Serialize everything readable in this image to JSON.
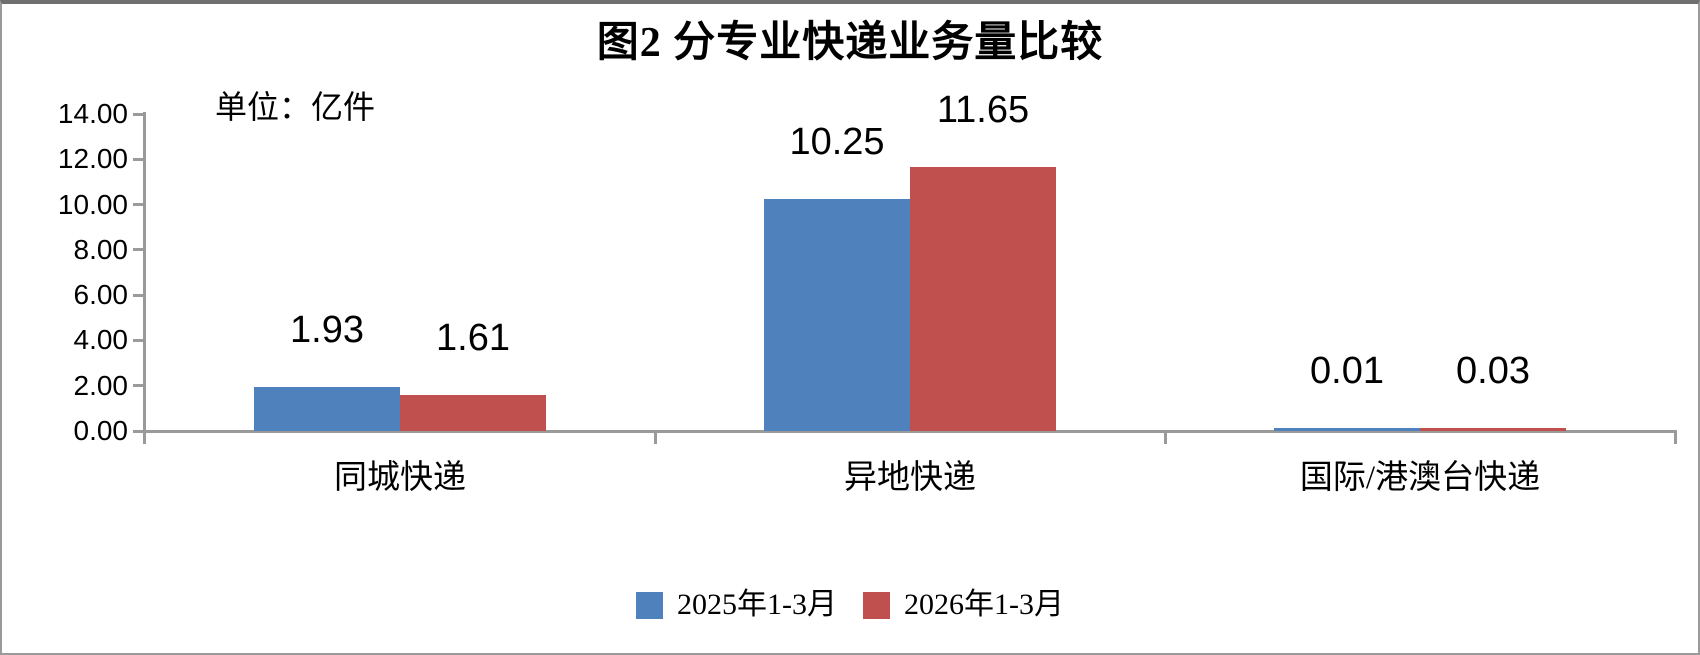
{
  "chart": {
    "title": "图2 分专业快递业务量比较",
    "unit_label": "单位：亿件"
  },
  "chart_data": {
    "type": "bar",
    "title": "图2 分专业快递业务量比较",
    "unit_label": "单位：亿件",
    "categories": [
      "同城快递",
      "异地快递",
      "国际/港澳台快递"
    ],
    "series": [
      {
        "name": "2025年1-3月",
        "color": "#4F81BD",
        "values": [
          1.93,
          10.25,
          0.01
        ],
        "value_labels": [
          "1.93",
          "10.25",
          "0.01"
        ]
      },
      {
        "name": "2026年1-3月",
        "color": "#C0504D",
        "values": [
          1.61,
          11.65,
          0.03
        ],
        "value_labels": [
          "1.61",
          "11.65",
          "0.03"
        ]
      }
    ],
    "ylabel": "",
    "xlabel": "",
    "ylim": [
      0,
      14
    ],
    "y_tick_step": 2,
    "y_tick_labels": [
      "0.00",
      "2.00",
      "4.00",
      "6.00",
      "8.00",
      "10.00",
      "12.00",
      "14.00"
    ],
    "grid": false,
    "legend_position": "bottom",
    "axis_color": "#9a9a9a",
    "text_color": "#000000"
  }
}
